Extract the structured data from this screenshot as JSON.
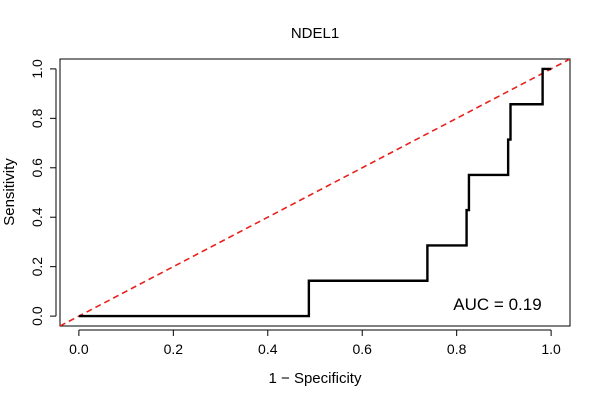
{
  "chart_data": {
    "type": "line",
    "title": "NDEL1",
    "xlabel": "1 − Specificity",
    "ylabel": "Sensitivity",
    "xlim": [
      -0.04,
      1.04
    ],
    "ylim": [
      -0.04,
      1.04
    ],
    "x_ticks": [
      0.0,
      0.2,
      0.4,
      0.6,
      0.8,
      1.0
    ],
    "x_tick_labels": [
      "0.0",
      "0.2",
      "0.4",
      "0.6",
      "0.8",
      "1.0"
    ],
    "y_ticks": [
      0.0,
      0.2,
      0.4,
      0.6,
      0.8,
      1.0
    ],
    "y_tick_labels": [
      "0.0",
      "0.2",
      "0.4",
      "0.6",
      "0.8",
      "1.0"
    ],
    "grid": false,
    "series": [
      {
        "name": "ROC curve",
        "color": "#000000",
        "style": "solid",
        "x": [
          0.0,
          0.487,
          0.487,
          0.738,
          0.738,
          0.821,
          0.821,
          0.826,
          0.826,
          0.909,
          0.909,
          0.914,
          0.914,
          0.982,
          0.982,
          1.0
        ],
        "y": [
          0.0,
          0.0,
          0.143,
          0.143,
          0.286,
          0.286,
          0.429,
          0.429,
          0.571,
          0.571,
          0.714,
          0.714,
          0.857,
          0.857,
          1.0,
          1.0
        ]
      },
      {
        "name": "chance line",
        "color": "#e8211c",
        "style": "dashed",
        "x": [
          -0.04,
          1.04
        ],
        "y": [
          -0.04,
          1.04
        ]
      }
    ],
    "annotations": [
      {
        "text": "AUC = 0.19",
        "x": 0.98,
        "y": 0.0
      }
    ]
  }
}
